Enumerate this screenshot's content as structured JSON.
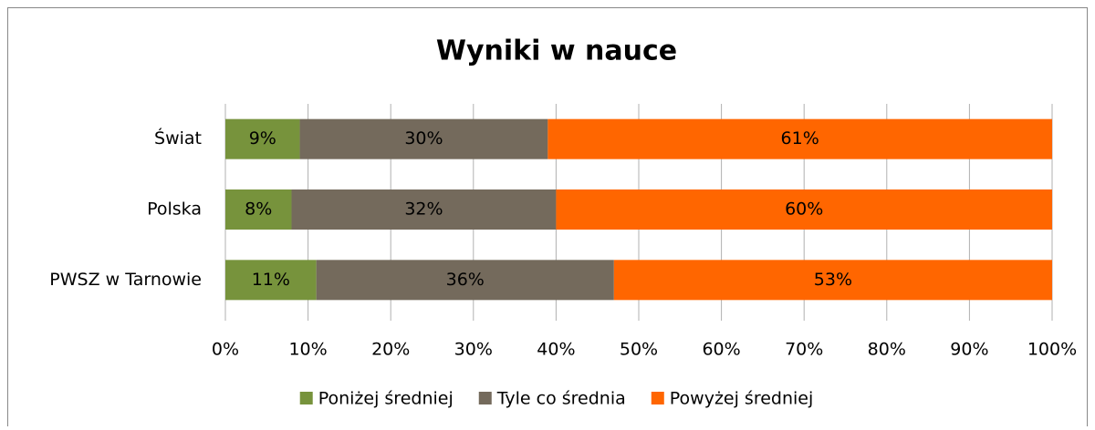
{
  "chart_data": {
    "type": "stacked_bar_horizontal",
    "title": "Wyniki w nauce",
    "categories": [
      "Świat",
      "Polska",
      "PWSZ w Tarnowie"
    ],
    "series": [
      {
        "name": "Poniżej średniej",
        "color": "#77933c",
        "values": [
          9,
          8,
          11
        ],
        "value_labels": [
          "9%",
          "8%",
          "11%"
        ]
      },
      {
        "name": "Tyle co średnia",
        "color": "#746a5c",
        "values": [
          30,
          32,
          36
        ],
        "value_labels": [
          "30%",
          "32%",
          "36%"
        ]
      },
      {
        "name": "Powyżej średniej",
        "color": "#ff6600",
        "values": [
          61,
          60,
          53
        ],
        "value_labels": [
          "61%",
          "60%",
          "53%"
        ]
      }
    ],
    "xlim": [
      0,
      100
    ],
    "xticks": [
      {
        "value": 0,
        "label": "0%"
      },
      {
        "value": 10,
        "label": "10%"
      },
      {
        "value": 20,
        "label": "20%"
      },
      {
        "value": 30,
        "label": "30%"
      },
      {
        "value": 40,
        "label": "40%"
      },
      {
        "value": 50,
        "label": "50%"
      },
      {
        "value": 60,
        "label": "60%"
      },
      {
        "value": 70,
        "label": "70%"
      },
      {
        "value": 80,
        "label": "80%"
      },
      {
        "value": 90,
        "label": "90%"
      },
      {
        "value": 100,
        "label": "100%"
      }
    ],
    "grid": true,
    "legend": "bottom"
  }
}
